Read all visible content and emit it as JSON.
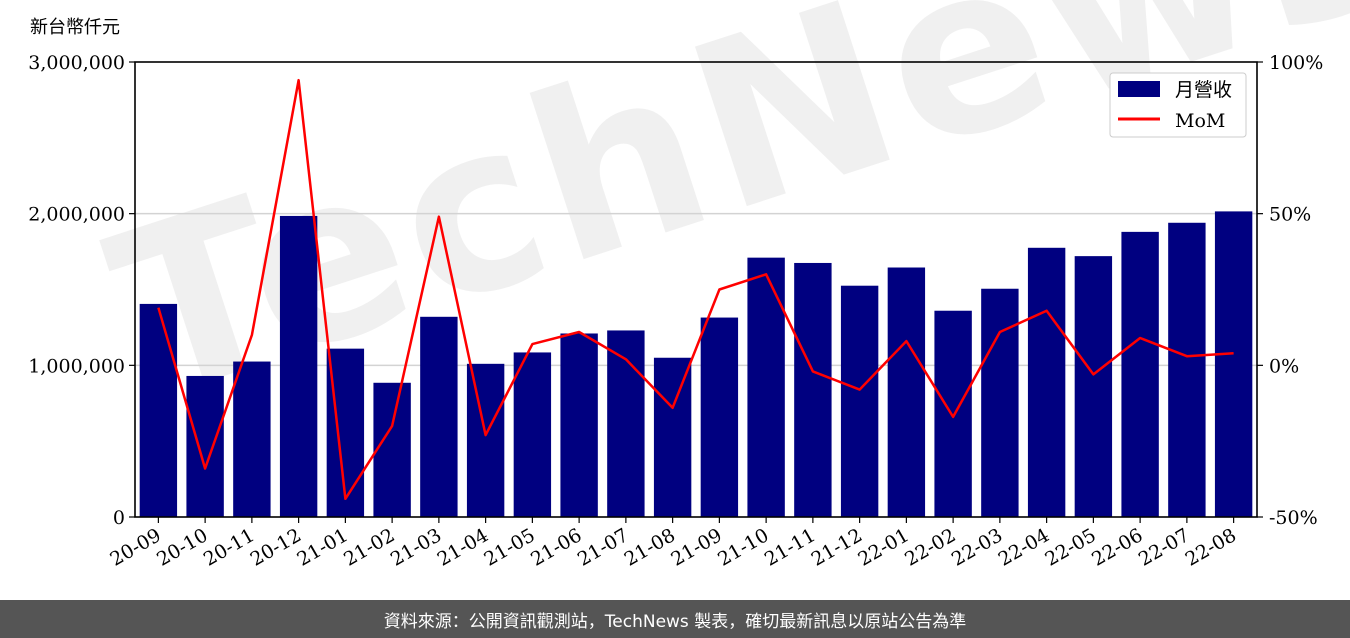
{
  "unit_label": "新台幣仟元",
  "watermark": "TechNews",
  "footer": "資料來源：公開資訊觀測站，TechNews 製表，確切最新訊息以原站公告為準",
  "colors": {
    "bar": "#000080",
    "line": "#ff0000",
    "grid": "#d3d3d3",
    "footer_bg": "#555555"
  },
  "chart_data": {
    "type": "bar",
    "categories": [
      "20-09",
      "20-10",
      "20-11",
      "20-12",
      "21-01",
      "21-02",
      "21-03",
      "21-04",
      "21-05",
      "21-06",
      "21-07",
      "21-08",
      "21-09",
      "21-10",
      "21-11",
      "21-12",
      "22-01",
      "22-02",
      "22-03",
      "22-04",
      "22-05",
      "22-06",
      "22-07",
      "22-08"
    ],
    "series": [
      {
        "name": "月營收",
        "type": "bar",
        "axis": "left",
        "values": [
          1405000,
          930000,
          1025000,
          1985000,
          1110000,
          885000,
          1320000,
          1010000,
          1085000,
          1210000,
          1230000,
          1050000,
          1315000,
          1710000,
          1675000,
          1525000,
          1645000,
          1360000,
          1505000,
          1775000,
          1720000,
          1880000,
          1940000,
          2015000
        ]
      },
      {
        "name": "MoM",
        "type": "line",
        "axis": "right",
        "values": [
          19,
          -34,
          10,
          94,
          -44,
          -20,
          49,
          -23,
          7,
          11,
          2,
          -14,
          25,
          30,
          -2,
          -8,
          8,
          -17,
          11,
          18,
          -3,
          9,
          3,
          4
        ]
      }
    ],
    "y_left": {
      "min": 0,
      "max": 3000000,
      "ticks": [
        0,
        1000000,
        2000000,
        3000000
      ],
      "tick_labels": [
        "0",
        "1,000,000",
        "2,000,000",
        "3,000,000"
      ]
    },
    "y_right": {
      "min": -50,
      "max": 100,
      "ticks": [
        -50,
        0,
        50,
        100
      ],
      "tick_labels": [
        "-50%",
        "0%",
        "50%",
        "100%"
      ]
    },
    "grid": true,
    "legend_position": "top-right"
  }
}
